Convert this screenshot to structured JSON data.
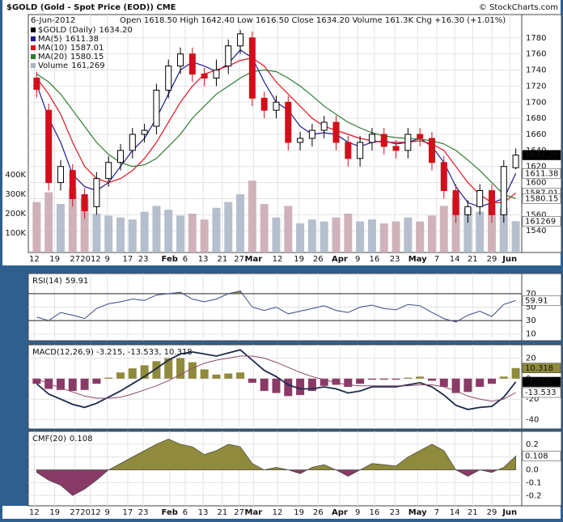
{
  "chart_data": [
    {
      "type": "candlestick",
      "title": "$GOLD (Gold - Spot Price (EOD)) CME",
      "source": "© StockCharts.com",
      "date": "6-Jun-2012",
      "summary": "Open 1618.50 High 1642.40 Low 1616.50 Close 1634.20 Volume 161.3K Chg +16.30 (+1.01%)",
      "grid": true,
      "xlim": [
        -0.7,
        40.5
      ],
      "xticks": [
        {
          "value": -0.2,
          "label": "12"
        },
        {
          "value": 1.5,
          "label": "19"
        },
        {
          "value": 3.2,
          "label": "27"
        },
        {
          "value": 4.5,
          "label": "2012"
        },
        {
          "value": 5.9,
          "label": "9"
        },
        {
          "value": 7.6,
          "label": "17"
        },
        {
          "value": 8.9,
          "label": "23"
        },
        {
          "value": 11.1,
          "label": "Feb"
        },
        {
          "value": 12.4,
          "label": "6"
        },
        {
          "value": 13.9,
          "label": "13"
        },
        {
          "value": 15.5,
          "label": "21"
        },
        {
          "value": 16.9,
          "label": "27"
        },
        {
          "value": 18.1,
          "label": "Mar"
        },
        {
          "value": 20.1,
          "label": "12"
        },
        {
          "value": 21.9,
          "label": "19"
        },
        {
          "value": 23.5,
          "label": "26"
        },
        {
          "value": 25.3,
          "label": "Apr"
        },
        {
          "value": 26.8,
          "label": "9"
        },
        {
          "value": 28.2,
          "label": "16"
        },
        {
          "value": 29.9,
          "label": "23"
        },
        {
          "value": 31.8,
          "label": "May"
        },
        {
          "value": 33.4,
          "label": "7"
        },
        {
          "value": 34.9,
          "label": "14"
        },
        {
          "value": 36.4,
          "label": "21"
        },
        {
          "value": 38.0,
          "label": "29"
        },
        {
          "value": 39.5,
          "label": "Jun"
        }
      ],
      "ylim": [
        1513,
        1809
      ],
      "yticks": [
        1540,
        1560,
        1580,
        1600,
        1620,
        1640,
        1660,
        1680,
        1700,
        1720,
        1740,
        1760,
        1780
      ],
      "y2lim": [
        0,
        1225000
      ],
      "y2ticks": [
        {
          "value": 100000,
          "label": "100K"
        },
        {
          "value": 200000,
          "label": "200K"
        },
        {
          "value": 300000,
          "label": "300K"
        },
        {
          "value": 400000,
          "label": "400K"
        }
      ],
      "series": [
        {
          "name": "$GOLD (Daily)",
          "color": "#000000",
          "down_color": "#d0101a",
          "last_label": "1634.20",
          "open": [
            1730,
            1690,
            1600,
            1615,
            1585,
            1570,
            1605,
            1625,
            1640,
            1660,
            1670,
            1715,
            1745,
            1760,
            1735,
            1730,
            1745,
            1770,
            1780,
            1705,
            1690,
            1700,
            1650,
            1655,
            1665,
            1675,
            1650,
            1630,
            1650,
            1660,
            1645,
            1640,
            1660,
            1655,
            1625,
            1590,
            1560,
            1570,
            1590,
            1560,
            1618.5
          ],
          "high": [
            1738,
            1698,
            1628,
            1623,
            1593,
            1613,
            1633,
            1648,
            1668,
            1673,
            1723,
            1753,
            1768,
            1768,
            1743,
            1753,
            1778,
            1790,
            1788,
            1713,
            1708,
            1708,
            1663,
            1673,
            1683,
            1683,
            1658,
            1658,
            1668,
            1668,
            1653,
            1668,
            1668,
            1663,
            1633,
            1598,
            1578,
            1598,
            1598,
            1628,
            1642.4
          ],
          "low": [
            1706,
            1590,
            1590,
            1570,
            1555,
            1560,
            1595,
            1615,
            1630,
            1650,
            1660,
            1705,
            1735,
            1725,
            1720,
            1720,
            1735,
            1760,
            1695,
            1680,
            1680,
            1640,
            1640,
            1645,
            1655,
            1640,
            1620,
            1620,
            1640,
            1635,
            1630,
            1630,
            1645,
            1615,
            1580,
            1550,
            1550,
            1560,
            1550,
            1550,
            1616.5
          ],
          "close": [
            1716,
            1600,
            1620,
            1580,
            1565,
            1605,
            1625,
            1640,
            1660,
            1665,
            1715,
            1745,
            1760,
            1735,
            1730,
            1740,
            1770,
            1785,
            1705,
            1690,
            1700,
            1650,
            1655,
            1665,
            1675,
            1650,
            1630,
            1650,
            1660,
            1645,
            1640,
            1660,
            1655,
            1625,
            1590,
            1560,
            1570,
            1590,
            1560,
            1620,
            1634.2
          ]
        },
        {
          "name": "MA(5)",
          "color": "#1c1c8c",
          "values": [
            1722,
            1680,
            1650,
            1610,
            1595,
            1590,
            1600,
            1620,
            1640,
            1655,
            1680,
            1710,
            1740,
            1750,
            1745,
            1738,
            1748,
            1765,
            1755,
            1725,
            1700,
            1690,
            1670,
            1660,
            1662,
            1660,
            1650,
            1645,
            1650,
            1652,
            1648,
            1650,
            1655,
            1645,
            1625,
            1595,
            1575,
            1570,
            1575,
            1580,
            1611.38
          ]
        },
        {
          "name": "MA(10)",
          "color": "#e0141e",
          "values": [
            1730,
            1710,
            1685,
            1650,
            1620,
            1605,
            1600,
            1605,
            1615,
            1630,
            1650,
            1675,
            1700,
            1720,
            1735,
            1740,
            1745,
            1752,
            1755,
            1745,
            1725,
            1710,
            1695,
            1680,
            1670,
            1665,
            1660,
            1655,
            1652,
            1650,
            1650,
            1650,
            1652,
            1648,
            1640,
            1620,
            1600,
            1585,
            1575,
            1575,
            1587.01
          ]
        },
        {
          "name": "MA(20)",
          "color": "#2e7d32",
          "values": [
            1735,
            1725,
            1710,
            1690,
            1670,
            1650,
            1635,
            1625,
            1620,
            1622,
            1630,
            1645,
            1660,
            1680,
            1695,
            1710,
            1720,
            1730,
            1738,
            1740,
            1738,
            1730,
            1720,
            1708,
            1695,
            1685,
            1675,
            1668,
            1662,
            1658,
            1656,
            1655,
            1654,
            1652,
            1648,
            1640,
            1628,
            1615,
            1600,
            1585,
            1580.15
          ]
        },
        {
          "name": "Volume",
          "axis": "y2",
          "color": "#a9b4c6",
          "down_color": "#c8a6ae",
          "last_label": "161,269",
          "values": [
            260000,
            310000,
            250000,
            330000,
            280000,
            200000,
            190000,
            180000,
            170000,
            210000,
            240000,
            220000,
            190000,
            200000,
            170000,
            230000,
            260000,
            300000,
            370000,
            250000,
            180000,
            240000,
            150000,
            170000,
            160000,
            180000,
            200000,
            160000,
            170000,
            150000,
            160000,
            180000,
            160000,
            190000,
            240000,
            280000,
            230000,
            210000,
            250000,
            230000,
            161269
          ]
        }
      ]
    },
    {
      "type": "line",
      "title": "RSI(14)",
      "color": "#3a4a8a",
      "up_color": "#8f8a3c",
      "down_color": "#8a3a66",
      "ylim": [
        0,
        100
      ],
      "yticks": [
        10,
        30,
        50,
        70
      ],
      "levels": [
        30,
        70
      ],
      "values": [
        35,
        30,
        42,
        38,
        33,
        48,
        55,
        58,
        62,
        60,
        68,
        70,
        72,
        62,
        58,
        62,
        70,
        74,
        50,
        45,
        50,
        40,
        44,
        48,
        52,
        45,
        42,
        50,
        53,
        48,
        46,
        54,
        52,
        42,
        33,
        28,
        38,
        44,
        36,
        54,
        59.91
      ]
    },
    {
      "type": "macd",
      "title": "MACD(12,26,9) -3.215, -13.533, 10.318",
      "ylim": [
        -49,
        33
      ],
      "yticks": [
        -40,
        -20,
        0,
        20
      ],
      "series": [
        {
          "name": "MACD",
          "color": "#1a2a4a",
          "values": [
            -5,
            -15,
            -20,
            -25,
            -28,
            -24,
            -18,
            -12,
            -5,
            2,
            10,
            18,
            24,
            26,
            24,
            22,
            25,
            28,
            18,
            8,
            2,
            -6,
            -10,
            -10,
            -8,
            -10,
            -14,
            -12,
            -8,
            -8,
            -8,
            -6,
            -4,
            -8,
            -16,
            -26,
            -30,
            -28,
            -27,
            -18,
            -3.215
          ]
        },
        {
          "name": "Signal",
          "color": "#8a4a6a",
          "values": [
            0,
            -5,
            -9,
            -13,
            -17,
            -19,
            -19,
            -18,
            -15,
            -11,
            -7,
            -2,
            4,
            10,
            15,
            18,
            20,
            22,
            22,
            20,
            16,
            11,
            6,
            2,
            -1,
            -4,
            -6,
            -7,
            -7,
            -7,
            -7,
            -7,
            -6,
            -6,
            -8,
            -12,
            -17,
            -20,
            -22,
            -20,
            -13.533
          ]
        },
        {
          "name": "Histogram",
          "color": "#8f8a3c",
          "down_color": "#8a3a66",
          "values": [
            -5,
            -10,
            -11,
            -12,
            -11,
            -5,
            1,
            6,
            10,
            13,
            17,
            20,
            20,
            16,
            9,
            4,
            5,
            6,
            -4,
            -12,
            -14,
            -17,
            -16,
            -12,
            -7,
            -6,
            -8,
            -5,
            -1,
            -1,
            -1,
            1,
            2,
            -2,
            -8,
            -14,
            -13,
            -8,
            -5,
            2,
            10.318
          ]
        }
      ]
    },
    {
      "type": "area",
      "title": "CMF(20)",
      "color": "#8f8a3c",
      "down_color": "#8a3a66",
      "ylim": [
        -0.28,
        0.3
      ],
      "yticks": [
        0.2,
        0.1,
        {
          "value": 0,
          "label": "0.0"
        },
        -0.1,
        -0.2
      ],
      "values": [
        -0.02,
        -0.08,
        -0.12,
        -0.2,
        -0.15,
        -0.08,
        0.0,
        0.05,
        0.1,
        0.15,
        0.2,
        0.24,
        0.2,
        0.18,
        0.12,
        0.15,
        0.2,
        0.18,
        0.05,
        0.0,
        0.02,
        0.0,
        -0.03,
        0.02,
        0.04,
        0.0,
        -0.05,
        0.0,
        0.05,
        0.04,
        0.03,
        0.1,
        0.15,
        0.2,
        0.15,
        0.0,
        -0.05,
        0.0,
        -0.02,
        0.02,
        0.108
      ]
    }
  ]
}
